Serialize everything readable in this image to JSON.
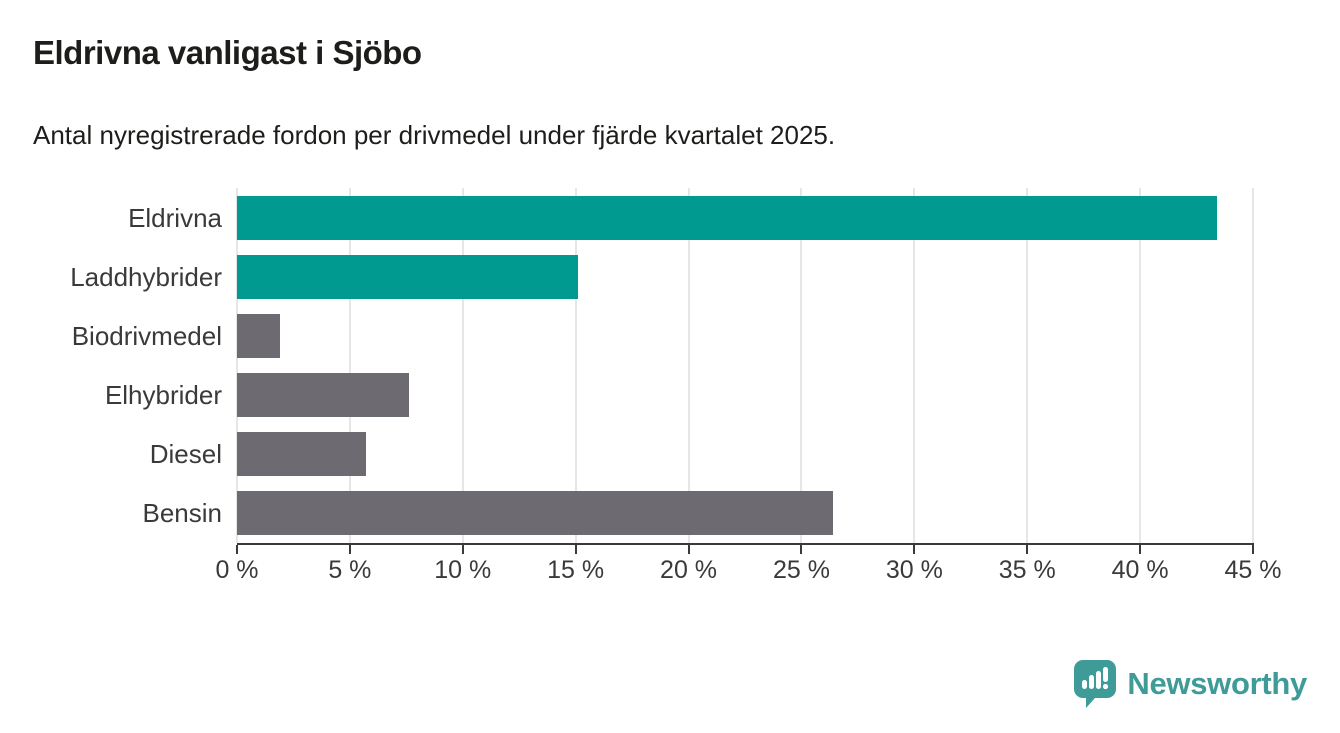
{
  "header": {
    "title": "Eldrivna vanligast i Sjöbo",
    "subtitle": "Antal nyregistrerade fordon per drivmedel under fjärde kvartalet 2025."
  },
  "chart_data": {
    "type": "bar",
    "orientation": "horizontal",
    "title": "Eldrivna vanligast i Sjöbo",
    "subtitle": "Antal nyregistrerade fordon per drivmedel under fjärde kvartalet 2025.",
    "categories": [
      "Eldrivna",
      "Laddhybrider",
      "Biodrivmedel",
      "Elhybrider",
      "Diesel",
      "Bensin"
    ],
    "values": [
      43.4,
      15.1,
      1.9,
      7.6,
      5.7,
      26.4
    ],
    "unit": "%",
    "bar_colors": [
      "#009a91",
      "#009a91",
      "#6e6a72",
      "#6e6a72",
      "#6e6a72",
      "#6e6a72"
    ],
    "highlight_color": "#009a91",
    "default_color": "#6e6a72",
    "xlabel": "",
    "ylabel": "",
    "xlim": [
      0,
      45
    ],
    "x_ticks": [
      0,
      5,
      10,
      15,
      20,
      25,
      30,
      35,
      40,
      45
    ],
    "x_tick_labels": [
      "0 %",
      "5 %",
      "10 %",
      "15 %",
      "20 %",
      "25 %",
      "30 %",
      "35 %",
      "40 %",
      "45 %"
    ],
    "grid": "vertical",
    "gridline_color": "#e6e6e6",
    "legend": "none"
  },
  "footer": {
    "brand": "Newsworthy",
    "brand_color": "#3e9b97",
    "logo_icon": "bar-chart-pin-icon"
  }
}
